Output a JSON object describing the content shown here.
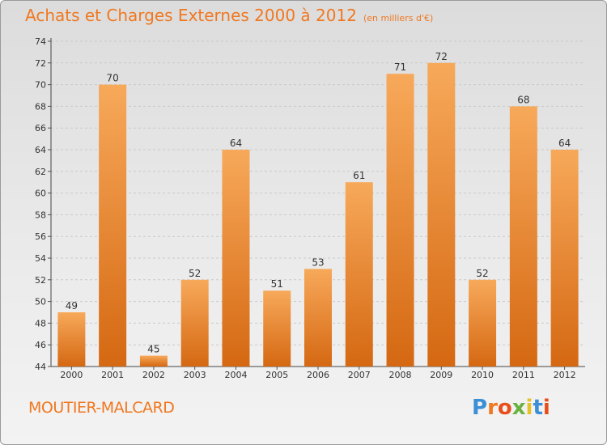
{
  "header": {
    "title": "Achats et Charges Externes 2000 à 2012",
    "subtitle": "(en milliers d'€)"
  },
  "footer": {
    "commune": "MOUTIER-MALCARD",
    "logo_text": "Proxiti"
  },
  "colors": {
    "accent": "#f07820",
    "bar_light": "#f7a95a",
    "bar_dark": "#d96a15",
    "logo_letters": [
      "#3a8fd6",
      "#f07820",
      "#e94e1b",
      "#6ab23e",
      "#e6c229",
      "#3a8fd6",
      "#e94e1b"
    ]
  },
  "chart_data": {
    "type": "bar",
    "categories": [
      "2000",
      "2001",
      "2002",
      "2003",
      "2004",
      "2005",
      "2006",
      "2007",
      "2008",
      "2009",
      "2010",
      "2011",
      "2012"
    ],
    "values": [
      49,
      70,
      45,
      52,
      64,
      51,
      53,
      61,
      71,
      72,
      52,
      68,
      64
    ],
    "ylim": [
      44,
      74
    ],
    "yticks": [
      44,
      46,
      48,
      50,
      52,
      54,
      56,
      58,
      60,
      62,
      64,
      66,
      68,
      70,
      72,
      74
    ],
    "grid": true,
    "title": "Achats et Charges Externes 2000 à 2012",
    "xlabel": "",
    "ylabel": ""
  }
}
